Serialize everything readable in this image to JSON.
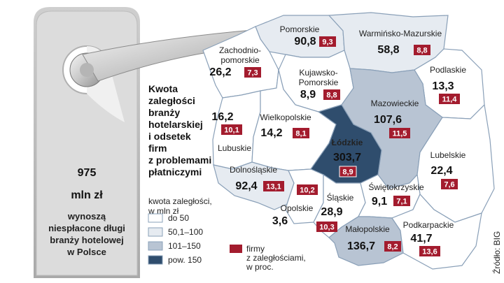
{
  "total": {
    "value": "975",
    "unit": "mln zł",
    "caption": [
      "wynoszą",
      "niespłacone długi",
      "branży hotelowej",
      "w Polsce"
    ]
  },
  "title_lines": [
    "Kwota",
    "zaległości",
    "branży",
    "hotelarskiej",
    "i odsetek",
    "firm",
    "z problemami",
    "płatniczymi"
  ],
  "legend": {
    "title_lines": [
      "kwota zaległości,",
      "w mln zł"
    ],
    "items": [
      {
        "label": "do 50",
        "color": "#ffffff"
      },
      {
        "label": "50,1–100",
        "color": "#e6ebf1"
      },
      {
        "label": "101–150",
        "color": "#b8c4d3"
      },
      {
        "label": "pow. 150",
        "color": "#2f4d6d"
      }
    ],
    "firms_lines": [
      "firmy",
      "z zaległościami,",
      "w proc."
    ],
    "firms_color": "#a31c2e"
  },
  "source": "Źródło: BIG",
  "regions": [
    {
      "id": "pomorskie",
      "name_lines": [
        "Pomorskie"
      ],
      "value": "90,8",
      "percent": "9,3",
      "class": "50,1–100"
    },
    {
      "id": "warminsko-mazurskie",
      "name_lines": [
        "Warmińsko-Mazurskie"
      ],
      "value": "58,8",
      "percent": "8,8",
      "class": "50,1–100"
    },
    {
      "id": "zachodniopomorskie",
      "name_lines": [
        "Zachodnio-",
        "pomorskie"
      ],
      "value": "26,2",
      "percent": "7,3",
      "class": "do 50"
    },
    {
      "id": "kujawsko-pomorskie",
      "name_lines": [
        "Kujawsko-",
        "Pomorskie"
      ],
      "value": "8,9",
      "percent": "8,8",
      "class": "do 50"
    },
    {
      "id": "podlaskie",
      "name_lines": [
        "Podlaskie"
      ],
      "value": "13,3",
      "percent": "11,4",
      "class": "do 50"
    },
    {
      "id": "mazowieckie",
      "name_lines": [
        "Mazowieckie"
      ],
      "value": "107,6",
      "percent": "11,5",
      "class": "101–150"
    },
    {
      "id": "lubuskie",
      "name_lines": [
        "Lubuskie"
      ],
      "value": "16,2",
      "percent": "10,1",
      "class": "do 50"
    },
    {
      "id": "wielkopolskie",
      "name_lines": [
        "Wielkopolskie"
      ],
      "value": "14,2",
      "percent": "8,1",
      "class": "do 50"
    },
    {
      "id": "lodzkie",
      "name_lines": [
        "Łódzkie"
      ],
      "value": "303,7",
      "percent": "8,9",
      "class": "pow. 150"
    },
    {
      "id": "lubelskie",
      "name_lines": [
        "Lubelskie"
      ],
      "value": "22,4",
      "percent": "7,6",
      "class": "do 50"
    },
    {
      "id": "dolnoslaskie",
      "name_lines": [
        "Dolnośląskie"
      ],
      "value": "92,4",
      "percent": "13,1",
      "class": "50,1–100"
    },
    {
      "id": "opolskie",
      "name_lines": [
        "Opolskie"
      ],
      "value": "3,6",
      "percent": "10,2",
      "class": "do 50"
    },
    {
      "id": "slaskie",
      "name_lines": [
        "Śląskie"
      ],
      "value": "28,9",
      "percent": "10,3",
      "class": "do 50"
    },
    {
      "id": "swietokrzyskie",
      "name_lines": [
        "Świętokrzyskie"
      ],
      "value": "9,1",
      "percent": "7,1",
      "class": "do 50"
    },
    {
      "id": "malopolskie",
      "name_lines": [
        "Małopolskie"
      ],
      "value": "136,7",
      "percent": "8,2",
      "class": "101–150"
    },
    {
      "id": "podkarpackie",
      "name_lines": [
        "Podkarpackie"
      ],
      "value": "41,7",
      "percent": "13,6",
      "class": "do 50"
    }
  ]
}
